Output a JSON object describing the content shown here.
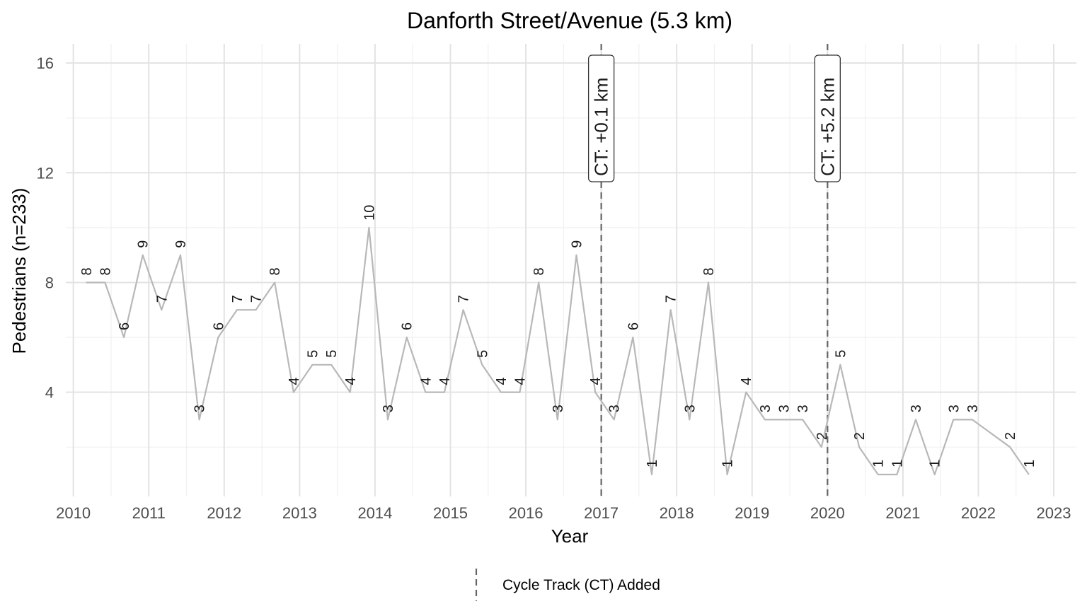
{
  "chart_data": {
    "type": "line",
    "title": "Danforth Street/Avenue (5.3 km)",
    "xlabel": "Year",
    "ylabel": "Pedestrians (n=233)",
    "xlim": [
      2009.9,
      2023.3
    ],
    "ylim": [
      0.2,
      16.7
    ],
    "x_ticks": [
      "2010",
      "2011",
      "2012",
      "2013",
      "2014",
      "2015",
      "2016",
      "2017",
      "2018",
      "2019",
      "2020",
      "2021",
      "2022",
      "2023"
    ],
    "y_ticks": [
      4,
      8,
      12,
      16
    ],
    "grid": true,
    "line_color": "#b8b8b8",
    "series": [
      {
        "x": [
          2010.17,
          2010.42,
          2010.67,
          2010.92,
          2011.17,
          2011.42,
          2011.67,
          2011.92,
          2012.17,
          2012.42,
          2012.67,
          2012.92,
          2013.17,
          2013.42,
          2013.67,
          2013.92,
          2014.17,
          2014.42,
          2014.67,
          2014.92,
          2015.17,
          2015.42,
          2015.67,
          2015.92,
          2016.17,
          2016.42,
          2016.67,
          2016.92,
          2017.17,
          2017.42,
          2017.67,
          2017.92,
          2018.17,
          2018.42,
          2018.67,
          2018.92,
          2019.17,
          2019.42,
          2019.67,
          2019.92,
          2020.17,
          2020.42,
          2020.67,
          2020.92,
          2021.17,
          2021.42,
          2021.67,
          2021.92,
          2022.42,
          2022.67
        ],
        "values": [
          8,
          8,
          6,
          9,
          7,
          9,
          3,
          6,
          7,
          7,
          8,
          4,
          5,
          5,
          4,
          10,
          3,
          6,
          4,
          4,
          7,
          5,
          4,
          4,
          8,
          3,
          9,
          4,
          3,
          6,
          1,
          7,
          3,
          8,
          1,
          4,
          3,
          3,
          3,
          2,
          5,
          2,
          1,
          1,
          3,
          1,
          3,
          3,
          2,
          1
        ]
      }
    ],
    "annotations": [
      {
        "x": 2017.0,
        "label": "CT: +0.1 km"
      },
      {
        "x": 2020.0,
        "label": "CT: +5.2 km"
      }
    ],
    "annotation_line_color": "#666666",
    "legend": {
      "position": "bottom",
      "label": "Cycle Track (CT) Added"
    }
  }
}
